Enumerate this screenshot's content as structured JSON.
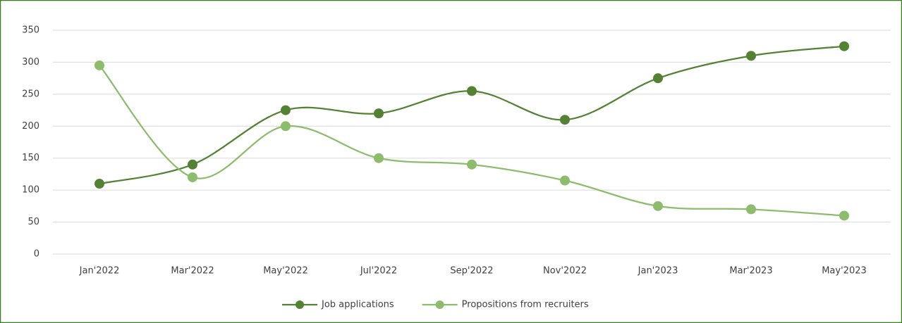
{
  "chart_data": {
    "type": "line",
    "categories": [
      "Jan'2022",
      "Mar'2022",
      "May'2022",
      "Jul'2022",
      "Sep'2022",
      "Nov'2022",
      "Jan'2023",
      "Mar'2023",
      "May'2023"
    ],
    "series": [
      {
        "name": "Job applications",
        "color": "#548235",
        "values": [
          110,
          140,
          225,
          220,
          255,
          210,
          275,
          310,
          325
        ]
      },
      {
        "name": "Propositions from recruiters",
        "color": "#8dbd6c",
        "values": [
          295,
          120,
          200,
          150,
          140,
          115,
          75,
          70,
          60
        ]
      }
    ],
    "ylim": [
      0,
      350
    ],
    "yticks": [
      0,
      50,
      100,
      150,
      200,
      250,
      300,
      350
    ],
    "grid": true,
    "smooth": true,
    "legend": "bottom"
  }
}
